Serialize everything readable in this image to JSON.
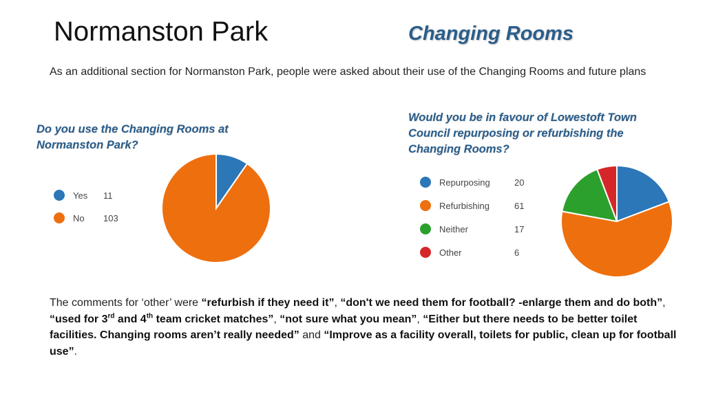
{
  "slide": {
    "title": "Normanston Park",
    "subtitle": "Changing Rooms",
    "intro": "As an additional section for Normanston Park, people were asked about their use of the Changing Rooms and future plans"
  },
  "chart_data": [
    {
      "type": "pie",
      "title": "Do you use the Changing Rooms at Normanston Park?",
      "categories": [
        "Yes",
        "No"
      ],
      "values": [
        11,
        103
      ],
      "colors": [
        "#2b77b8",
        "#ee6f0e"
      ],
      "legend": "left"
    },
    {
      "type": "pie",
      "title": "Would you be in favour of Lowestoft Town Council repurposing or refurbishing the Changing Rooms?",
      "categories": [
        "Repurposing",
        "Refurbishing",
        "Neither",
        "Other"
      ],
      "values": [
        20,
        61,
        17,
        6
      ],
      "colors": [
        "#2b77b8",
        "#ee6f0e",
        "#2ca02c",
        "#d62728"
      ],
      "legend": "left"
    }
  ],
  "comments": {
    "lead": "The comments for ‘other’ were ",
    "q1": "“refurbish if they need it”",
    "sep1": ", ",
    "q2": "“don't we need them for football? -enlarge them and do both”",
    "sep2": ", ",
    "q3a": "“used for 3",
    "q3sup1": "rd",
    "q3b": " and 4",
    "q3sup2": "th",
    "q3c": " team cricket matches”",
    "sep3": ", ",
    "q4": "“not sure what you mean”",
    "sep4": ", ",
    "q5": "“Either but there needs to be better toilet facilities. Changing rooms aren’t really needed”",
    "sep5": " and ",
    "q6": "“Improve as a facility overall, toilets for public, clean up for football use”",
    "end": "."
  }
}
